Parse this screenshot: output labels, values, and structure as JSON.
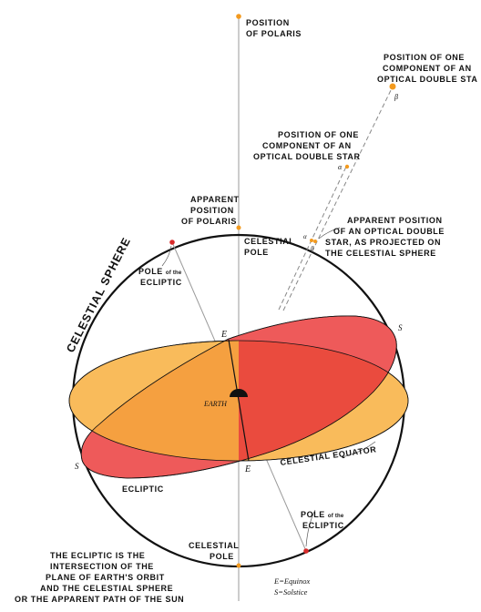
{
  "labels": {
    "polaris_l1": "POSITION",
    "polaris_l2": "OF POLARIS",
    "double_far_l1": "POSITION OF ONE",
    "double_far_l2": "COMPONENT OF AN",
    "double_far_l3": "OPTICAL DOUBLE STA",
    "double_near_l1": "POSITION OF ONE",
    "double_near_l2": "COMPONENT OF AN",
    "double_near_l3": "OPTICAL DOUBLE STAR",
    "apparent_polaris_l1": "APPARENT",
    "apparent_polaris_l2": "POSITION",
    "apparent_polaris_l3": "OF POLARIS",
    "apparent_double_l1": "APPARENT POSITION",
    "apparent_double_l2": "OF AN OPTICAL DOUBLE",
    "apparent_double_l3": "STAR, AS PROJECTED ON",
    "apparent_double_l4": "THE CELESTIAL SPHERE",
    "celestial_pole_top_l1": "CELESTIAL",
    "celestial_pole_top_l2": "POLE",
    "pole_ecliptic_top_l1a": "POLE",
    "pole_ecliptic_top_l1b": "of the",
    "pole_ecliptic_top_l2": "ECLIPTIC",
    "celestial_sphere": "CELESTIAL SPHERE",
    "earth": "EARTH",
    "e_top": "E",
    "e_bottom": "E",
    "s_right": "S",
    "s_left": "S",
    "alpha_upper": "α",
    "beta_upper": "β",
    "alpha_lower": "α",
    "beta_lower": "β",
    "celestial_equator": "CELESTIAL EQUATOR",
    "ecliptic": "ECLIPTIC",
    "pole_ecliptic_bottom_l1a": "POLE",
    "pole_ecliptic_bottom_l1b": "of the",
    "pole_ecliptic_bottom_l2": "ECLIPTIC",
    "celestial_pole_bottom_l1": "CELESTIAL",
    "celestial_pole_bottom_l2": "POLE",
    "note_l1": "THE ECLIPTIC IS THE",
    "note_l2": "INTERSECTION OF THE",
    "note_l3": "PLANE OF EARTH'S ORBIT",
    "note_l4": "AND THE CELESTIAL SPHERE",
    "note_l5": "OR THE APPARENT PATH OF THE SUN",
    "legend_equinox": "E=Equinox",
    "legend_solstice": "S=Solstice"
  },
  "colors": {
    "equator_fill": "#f9bb5b",
    "ecliptic_fill": "#ee5a5a",
    "overlap_left": "#f5a040",
    "overlap_right": "#ea4b3e",
    "axis": "#9a9a9a",
    "star_orange": "#f39a1e",
    "pole_red": "#d82a2a",
    "earth": "#111111"
  }
}
